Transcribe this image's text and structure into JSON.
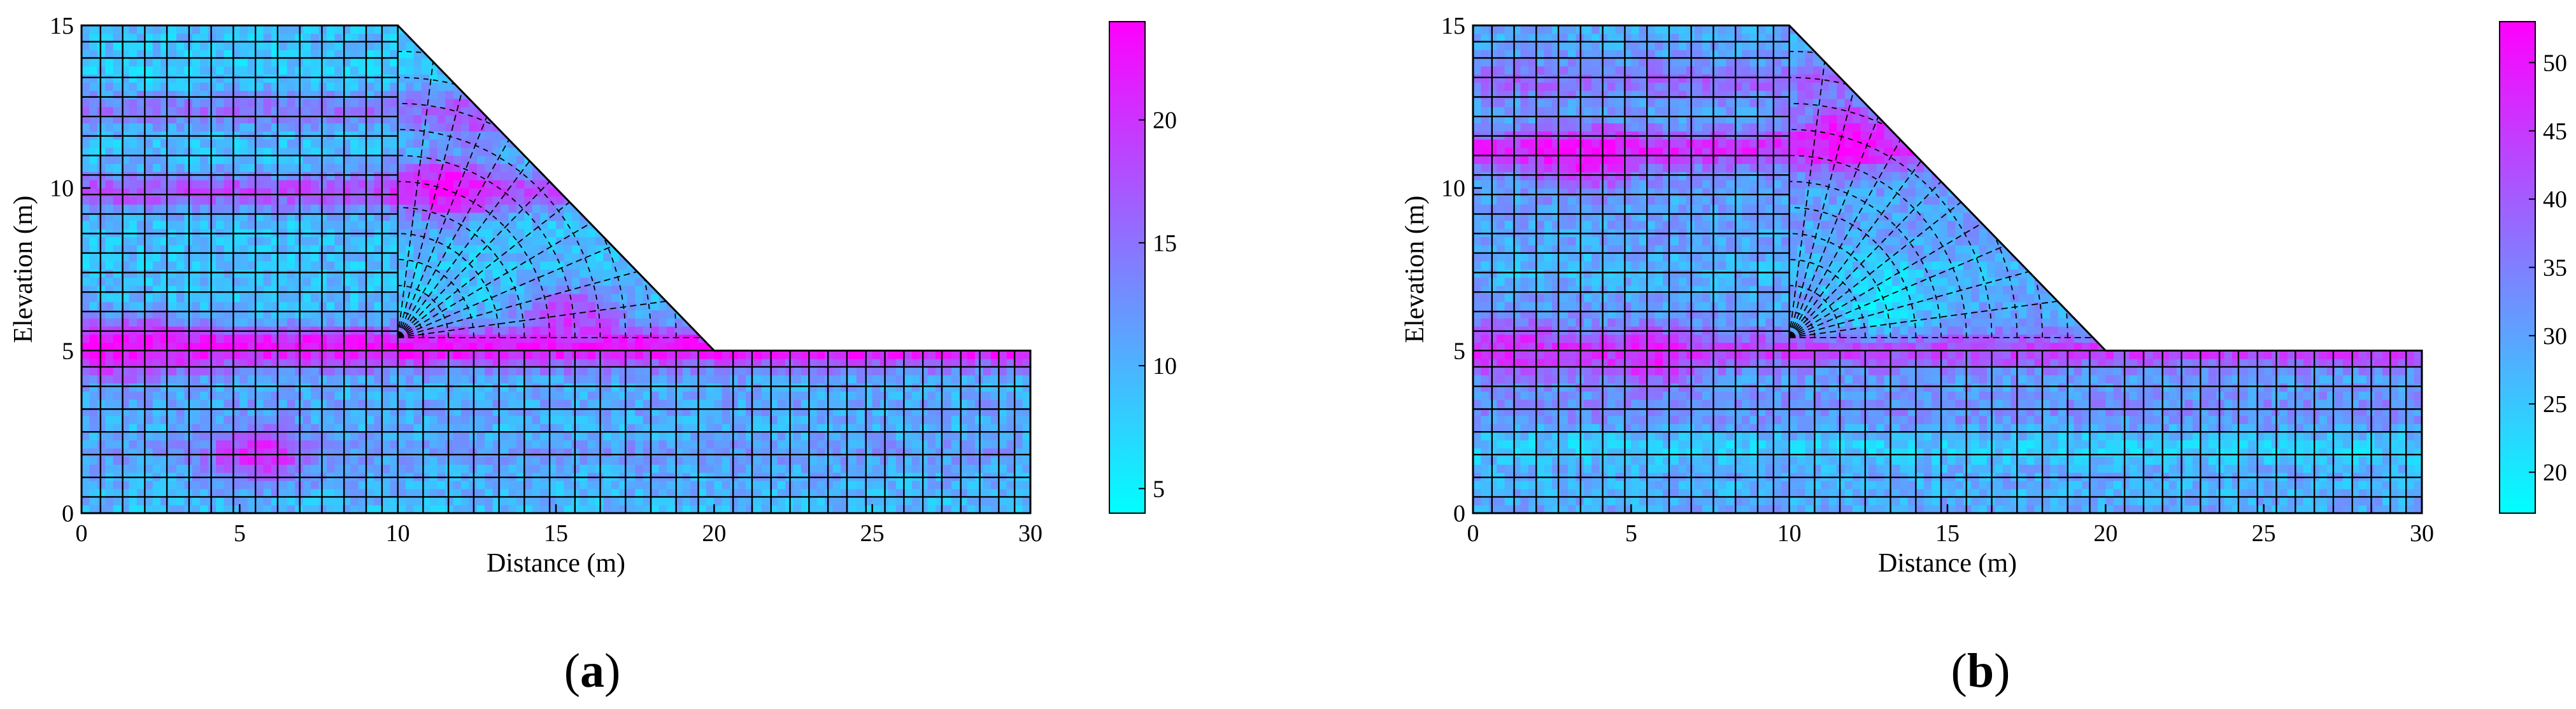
{
  "chart_data": [
    {
      "type": "heatmap",
      "panel_label": "a",
      "xlabel": "Distance (m)",
      "ylabel": "Elevation (m)",
      "xlim": [
        0,
        30
      ],
      "ylim": [
        0,
        15
      ],
      "x_ticks": [
        0,
        5,
        10,
        15,
        20,
        25,
        30
      ],
      "y_ticks": [
        0,
        5,
        10,
        15
      ],
      "domain_outline": [
        [
          0,
          0
        ],
        [
          30,
          0
        ],
        [
          30,
          5
        ],
        [
          20,
          5
        ],
        [
          10,
          15
        ],
        [
          0,
          15
        ]
      ],
      "colorbar": {
        "min": 4,
        "max": 24,
        "ticks": [
          5,
          10,
          15,
          20
        ],
        "colors": [
          "#00ffff",
          "#ff00ff"
        ]
      },
      "field_base": 9,
      "bands": [
        {
          "y": 0.8,
          "value": 10
        },
        {
          "y": 1.9,
          "value": 12
        },
        {
          "y": 3.3,
          "value": 11
        },
        {
          "y": 4.6,
          "value": 13
        },
        {
          "y": 5.2,
          "value": 22
        },
        {
          "y": 7.0,
          "value": 9
        },
        {
          "y": 9.9,
          "value": 18
        },
        {
          "y": 12.4,
          "value": 15
        },
        {
          "y": 13.8,
          "value": 8
        }
      ],
      "hotspots": [
        {
          "x": 11.6,
          "y": 10.0,
          "value": 23
        },
        {
          "x": 15.5,
          "y": 6.0,
          "value": 20
        },
        {
          "x": 5.6,
          "y": 1.8,
          "value": 21
        },
        {
          "x": 1.5,
          "y": 5.1,
          "value": 23
        },
        {
          "x": 12.5,
          "y": 12.2,
          "value": 17
        }
      ]
    },
    {
      "type": "heatmap",
      "panel_label": "b",
      "xlabel": "Distance (m)",
      "ylabel": "Elevation (m)",
      "xlim": [
        0,
        30
      ],
      "ylim": [
        0,
        15
      ],
      "x_ticks": [
        0,
        5,
        10,
        15,
        20,
        25,
        30
      ],
      "y_ticks": [
        0,
        5,
        10,
        15
      ],
      "domain_outline": [
        [
          0,
          0
        ],
        [
          30,
          0
        ],
        [
          30,
          5
        ],
        [
          20,
          5
        ],
        [
          10,
          15
        ],
        [
          0,
          15
        ]
      ],
      "colorbar": {
        "min": 17,
        "max": 53,
        "ticks": [
          20,
          25,
          30,
          35,
          40,
          45,
          50
        ],
        "colors": [
          "#00ffff",
          "#ff00ff"
        ]
      },
      "field_base": 30,
      "bands": [
        {
          "y": 0.7,
          "value": 28
        },
        {
          "y": 2.0,
          "value": 24
        },
        {
          "y": 3.2,
          "value": 33
        },
        {
          "y": 5.0,
          "value": 44
        },
        {
          "y": 7.5,
          "value": 27
        },
        {
          "y": 11.2,
          "value": 47
        },
        {
          "y": 13.3,
          "value": 38
        },
        {
          "y": 14.5,
          "value": 29
        }
      ],
      "hotspots": [
        {
          "x": 3.5,
          "y": 10.9,
          "value": 52
        },
        {
          "x": 11.8,
          "y": 11.6,
          "value": 52
        },
        {
          "x": 13.0,
          "y": 6.5,
          "value": 20
        },
        {
          "x": 1.5,
          "y": 5.0,
          "value": 47
        },
        {
          "x": 5.5,
          "y": 4.8,
          "value": 48
        }
      ]
    }
  ]
}
